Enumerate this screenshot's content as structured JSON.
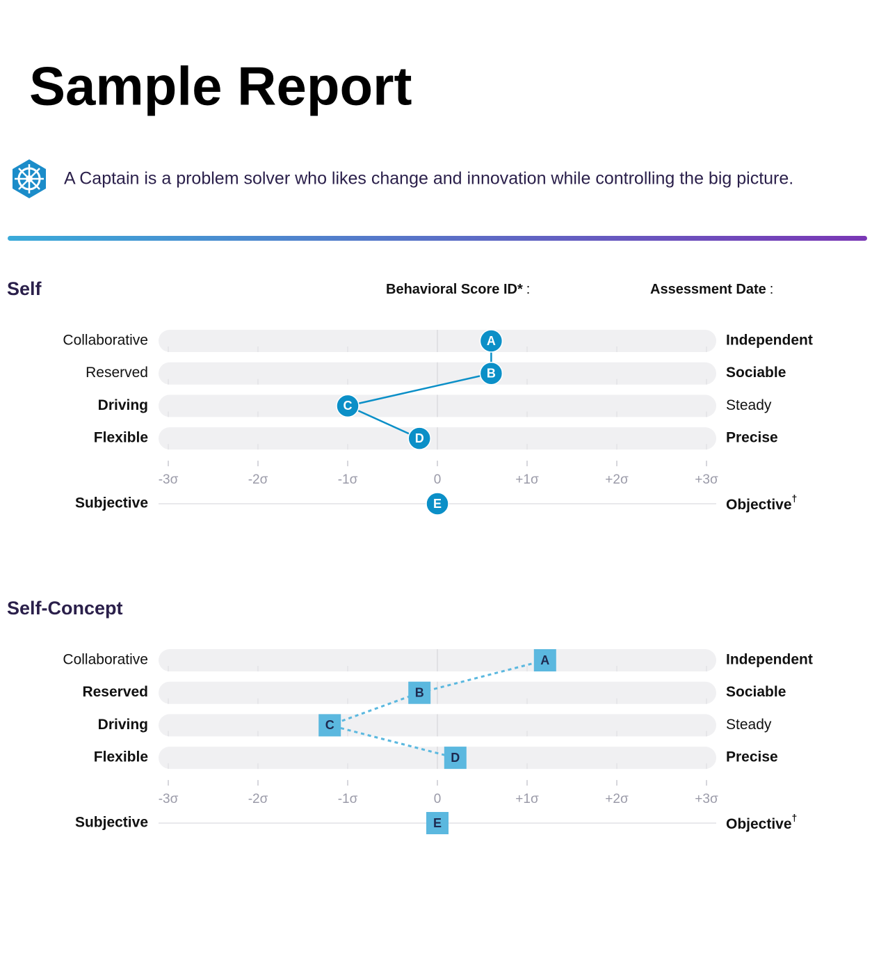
{
  "header": {
    "title": "Sample Report",
    "description": "A Captain is a problem solver who likes change and innovation while controlling the big picture."
  },
  "meta": [
    {
      "label": "Behavioral Score ID*",
      "separator": ":"
    },
    {
      "label": "Assessment Date",
      "separator": ":"
    }
  ],
  "chart_data": [
    {
      "type": "dot-scale",
      "title": "Self",
      "marker_shape": "circle",
      "line_style": "solid",
      "color": "#0b8fc7",
      "text_color": "#ffffff",
      "rows": [
        {
          "left": "Collaborative",
          "right": "Independent",
          "bold": "right"
        },
        {
          "left": "Reserved",
          "right": "Sociable",
          "bold": "right"
        },
        {
          "left": "Driving",
          "right": "Steady",
          "bold": "left"
        },
        {
          "left": "Flexible",
          "right": "Precise",
          "bold": "both"
        }
      ],
      "markers": [
        "A",
        "B",
        "C",
        "D"
      ],
      "values": [
        0.6,
        0.6,
        -1.0,
        -0.2
      ],
      "xlim": [
        -3,
        3
      ],
      "xticks": [
        {
          "value": -3,
          "label": "-3σ"
        },
        {
          "value": -2,
          "label": "-2σ"
        },
        {
          "value": -1,
          "label": "-1σ"
        },
        0,
        {
          "value": 1,
          "label": "+1σ"
        },
        {
          "value": 2,
          "label": "+2σ"
        },
        {
          "value": 3,
          "label": "+3σ"
        }
      ],
      "extra_row": {
        "left": "Subjective",
        "right": "Objective",
        "sup": "†",
        "bold": "both",
        "marker": "E",
        "value": 0
      }
    },
    {
      "type": "dot-scale",
      "title": "Self-Concept",
      "marker_shape": "square",
      "line_style": "dashed",
      "color": "#5bb8df",
      "text_color": "#1e2a50",
      "rows": [
        {
          "left": "Collaborative",
          "right": "Independent",
          "bold": "right"
        },
        {
          "left": "Reserved",
          "right": "Sociable",
          "bold": "both"
        },
        {
          "left": "Driving",
          "right": "Steady",
          "bold": "left"
        },
        {
          "left": "Flexible",
          "right": "Precise",
          "bold": "both"
        }
      ],
      "markers": [
        "A",
        "B",
        "C",
        "D"
      ],
      "values": [
        1.2,
        -0.2,
        -1.2,
        0.2
      ],
      "xlim": [
        -3,
        3
      ],
      "xticks": [
        {
          "value": -3,
          "label": "-3σ"
        },
        {
          "value": -2,
          "label": "-2σ"
        },
        {
          "value": -1,
          "label": "-1σ"
        },
        0,
        {
          "value": 1,
          "label": "+1σ"
        },
        {
          "value": 2,
          "label": "+2σ"
        },
        {
          "value": 3,
          "label": "+3σ"
        }
      ],
      "extra_row": {
        "left": "Subjective",
        "right": "Objective",
        "sup": "†",
        "bold": "both",
        "marker": "E",
        "value": 0
      }
    }
  ]
}
